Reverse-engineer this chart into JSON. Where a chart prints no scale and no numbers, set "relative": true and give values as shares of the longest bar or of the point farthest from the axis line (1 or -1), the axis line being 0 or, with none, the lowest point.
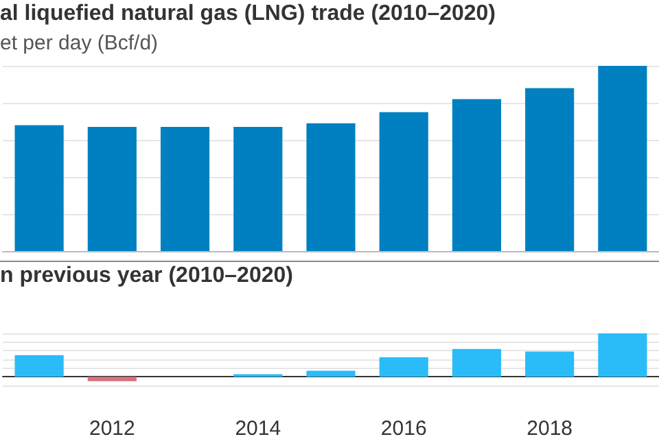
{
  "chart_data": [
    {
      "type": "bar",
      "title": "al liquefied natural gas (LNG) trade (2010–2020)",
      "subtitle": "et per day (Bcf/d)",
      "categories": [
        null,
        "2012",
        null,
        "2014",
        null,
        "2016",
        null,
        "2018",
        null
      ],
      "relative": true,
      "series": [
        {
          "color": "#0080c0",
          "values": [
            0.68,
            0.67,
            0.67,
            0.67,
            0.69,
            0.75,
            0.82,
            0.88,
            1
          ]
        }
      ],
      "grid": "y",
      "tick_labels": false
    },
    {
      "type": "bar",
      "title": "n previous year (2010–2020)",
      "categories": [
        null,
        "2012",
        null,
        "2014",
        null,
        "2016",
        null,
        "2018",
        null
      ],
      "relative": true,
      "series": [
        {
          "colors": [
            "#29bcf8",
            "#d8707e",
            "#29bcf8",
            "#29bcf8",
            "#29bcf8",
            "#29bcf8",
            "#29bcf8",
            "#29bcf8",
            "#29bcf8"
          ],
          "values": [
            0.5,
            -0.1,
            null,
            0.06,
            0.14,
            0.45,
            0.64,
            0.58,
            1
          ]
        }
      ],
      "grid": "y",
      "tick_labels": "x"
    }
  ]
}
